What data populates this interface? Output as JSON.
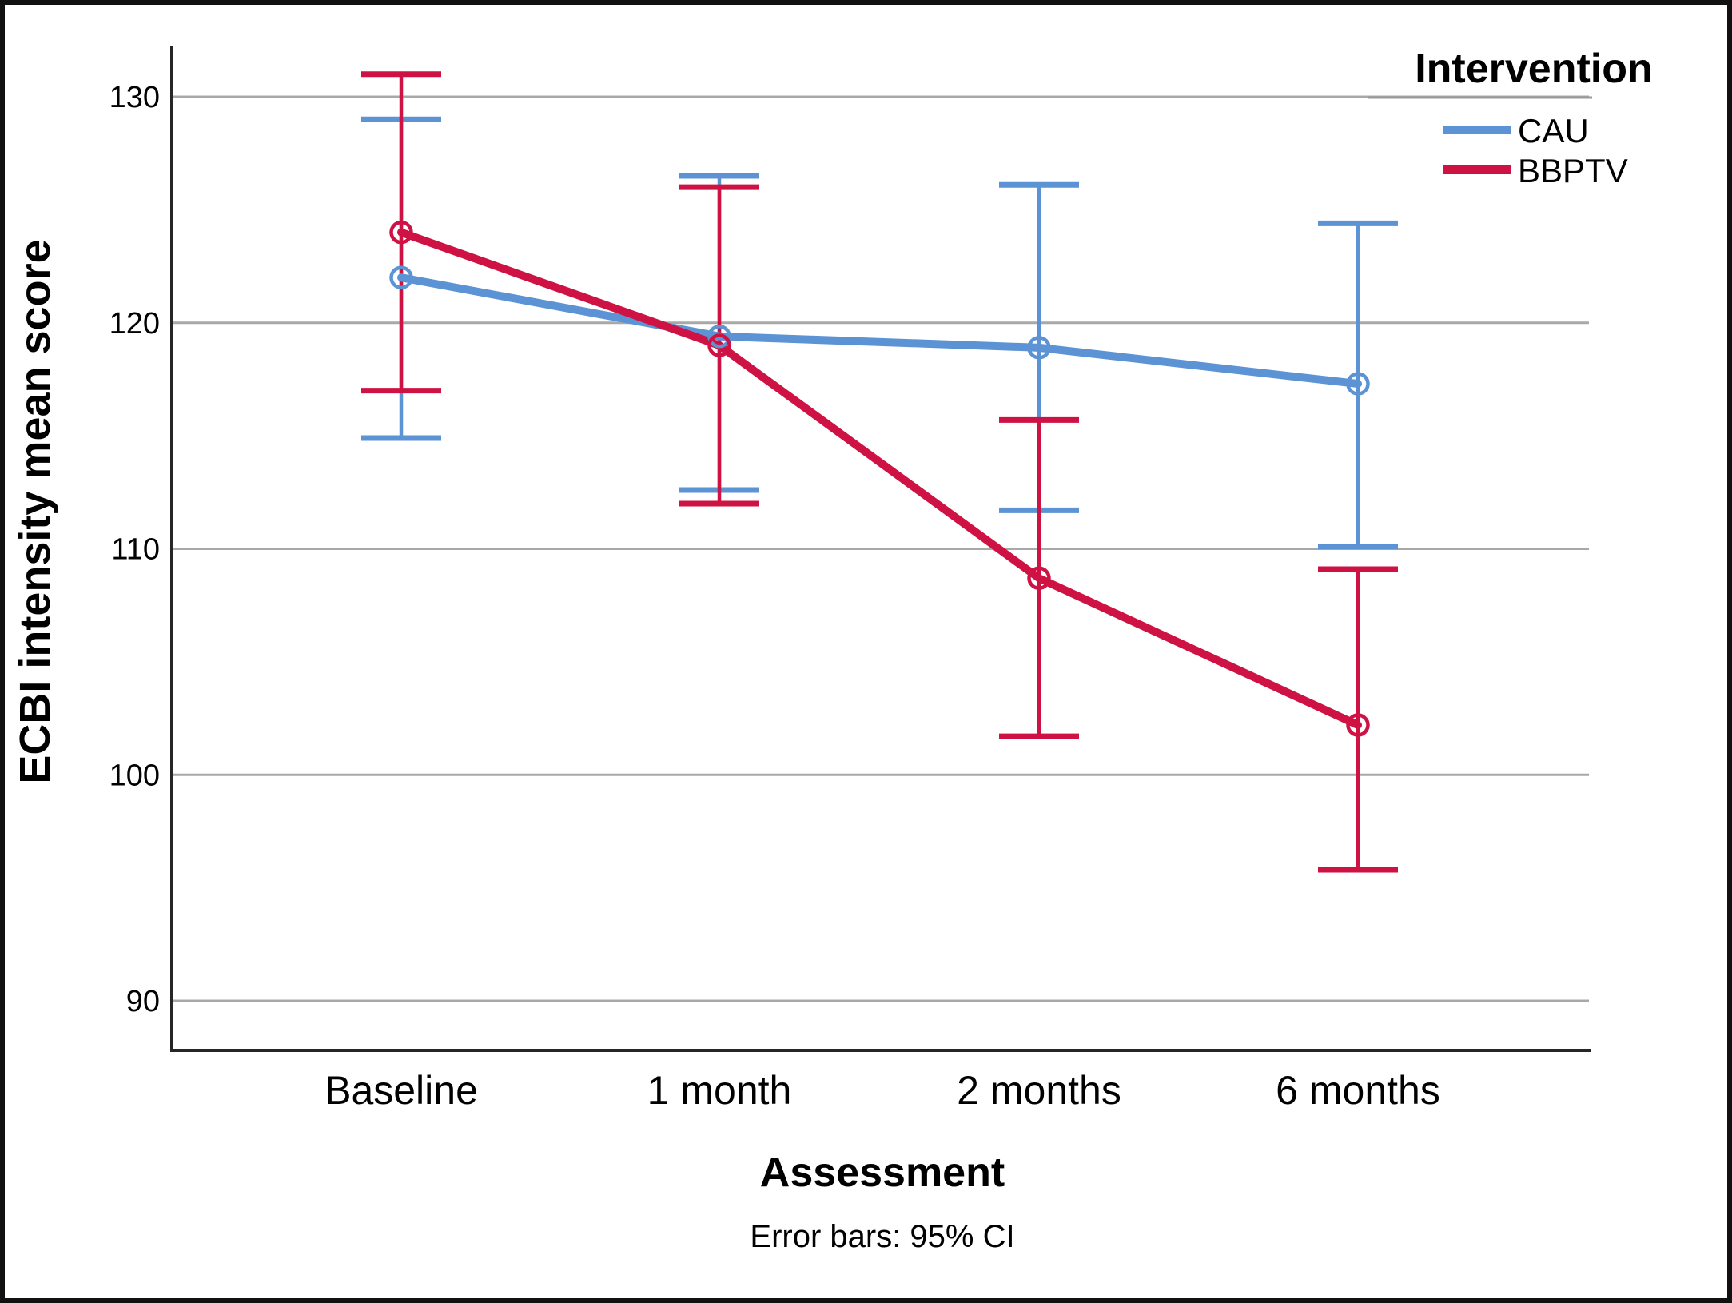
{
  "figure": {
    "y_axis_title": "ECBI intensity mean score",
    "x_axis_title": "Assessment",
    "footnote": "Error bars: 95% CI",
    "legend": {
      "title": "Intervention",
      "entries": [
        {
          "label": "CAU",
          "color": "#5C93D4"
        },
        {
          "label": "BBPTV",
          "color": "#CF1244"
        }
      ]
    }
  },
  "chart_data": {
    "type": "line",
    "title": "",
    "xlabel": "Assessment",
    "ylabel": "ECBI intensity mean score",
    "categories": [
      "Baseline",
      "1 month",
      "2 months",
      "6 months"
    ],
    "yticks": [
      90,
      100,
      110,
      120,
      130
    ],
    "ylim": [
      87.5,
      132.5
    ],
    "grid": true,
    "error_bars": "95% CI",
    "legend_position": "top-right",
    "marker": "open-circle",
    "colors": {
      "grid": "#A8A8A8",
      "axis": "#262626",
      "legend_rule": "#999999"
    },
    "series": [
      {
        "name": "CAU",
        "color": "#5C93D4",
        "means": [
          122.0,
          119.4,
          118.9,
          117.3
        ],
        "ci_low": [
          114.9,
          112.6,
          111.7,
          110.1
        ],
        "ci_high": [
          129.0,
          126.5,
          126.1,
          124.4
        ]
      },
      {
        "name": "BBPTV",
        "color": "#CF1244",
        "means": [
          124.0,
          119.0,
          108.7,
          102.2
        ],
        "ci_low": [
          117.0,
          112.0,
          101.7,
          95.8
        ],
        "ci_high": [
          131.0,
          126.0,
          115.7,
          109.1
        ]
      }
    ]
  }
}
